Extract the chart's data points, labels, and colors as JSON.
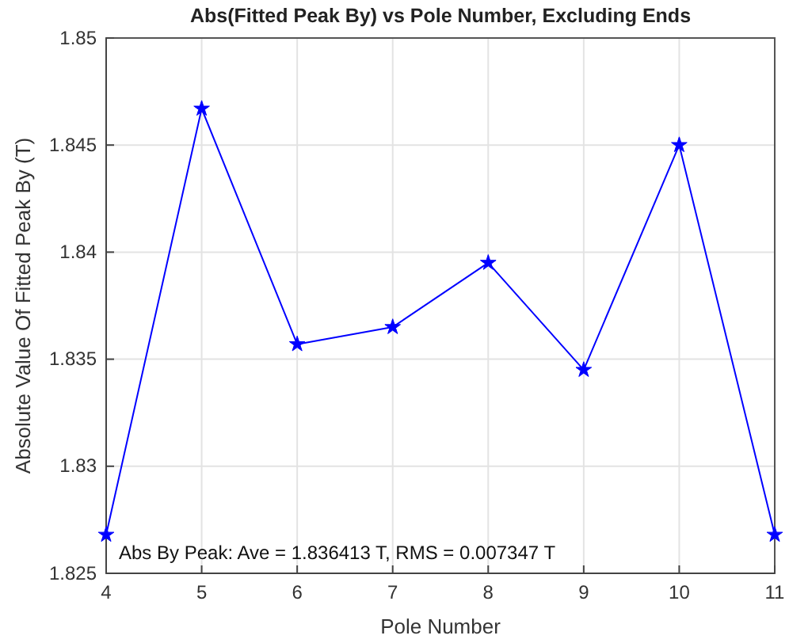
{
  "chart_data": {
    "type": "line",
    "title": "Abs(Fitted Peak By) vs Pole Number, Excluding Ends",
    "xlabel": "Pole Number",
    "ylabel": "Absolute Value Of Fitted Peak By (T)",
    "x": [
      4,
      5,
      6,
      7,
      8,
      9,
      10,
      11
    ],
    "series": [
      {
        "color": "#0000ff",
        "values": [
          1.8268,
          1.8467,
          1.8357,
          1.8365,
          1.8395,
          1.8345,
          1.845,
          1.8268
        ]
      }
    ],
    "xlim": [
      4,
      11
    ],
    "xticks": [
      4,
      5,
      6,
      7,
      8,
      9,
      10,
      11
    ],
    "ylim": [
      1.825,
      1.85
    ],
    "yticks": [
      1.825,
      1.83,
      1.835,
      1.84,
      1.845,
      1.85
    ],
    "grid": true,
    "marker": "star",
    "line_style": "solid",
    "annotations": [
      "Abs By Peak: Ave = 1.836413 T, RMS = 0.007347 T"
    ]
  }
}
